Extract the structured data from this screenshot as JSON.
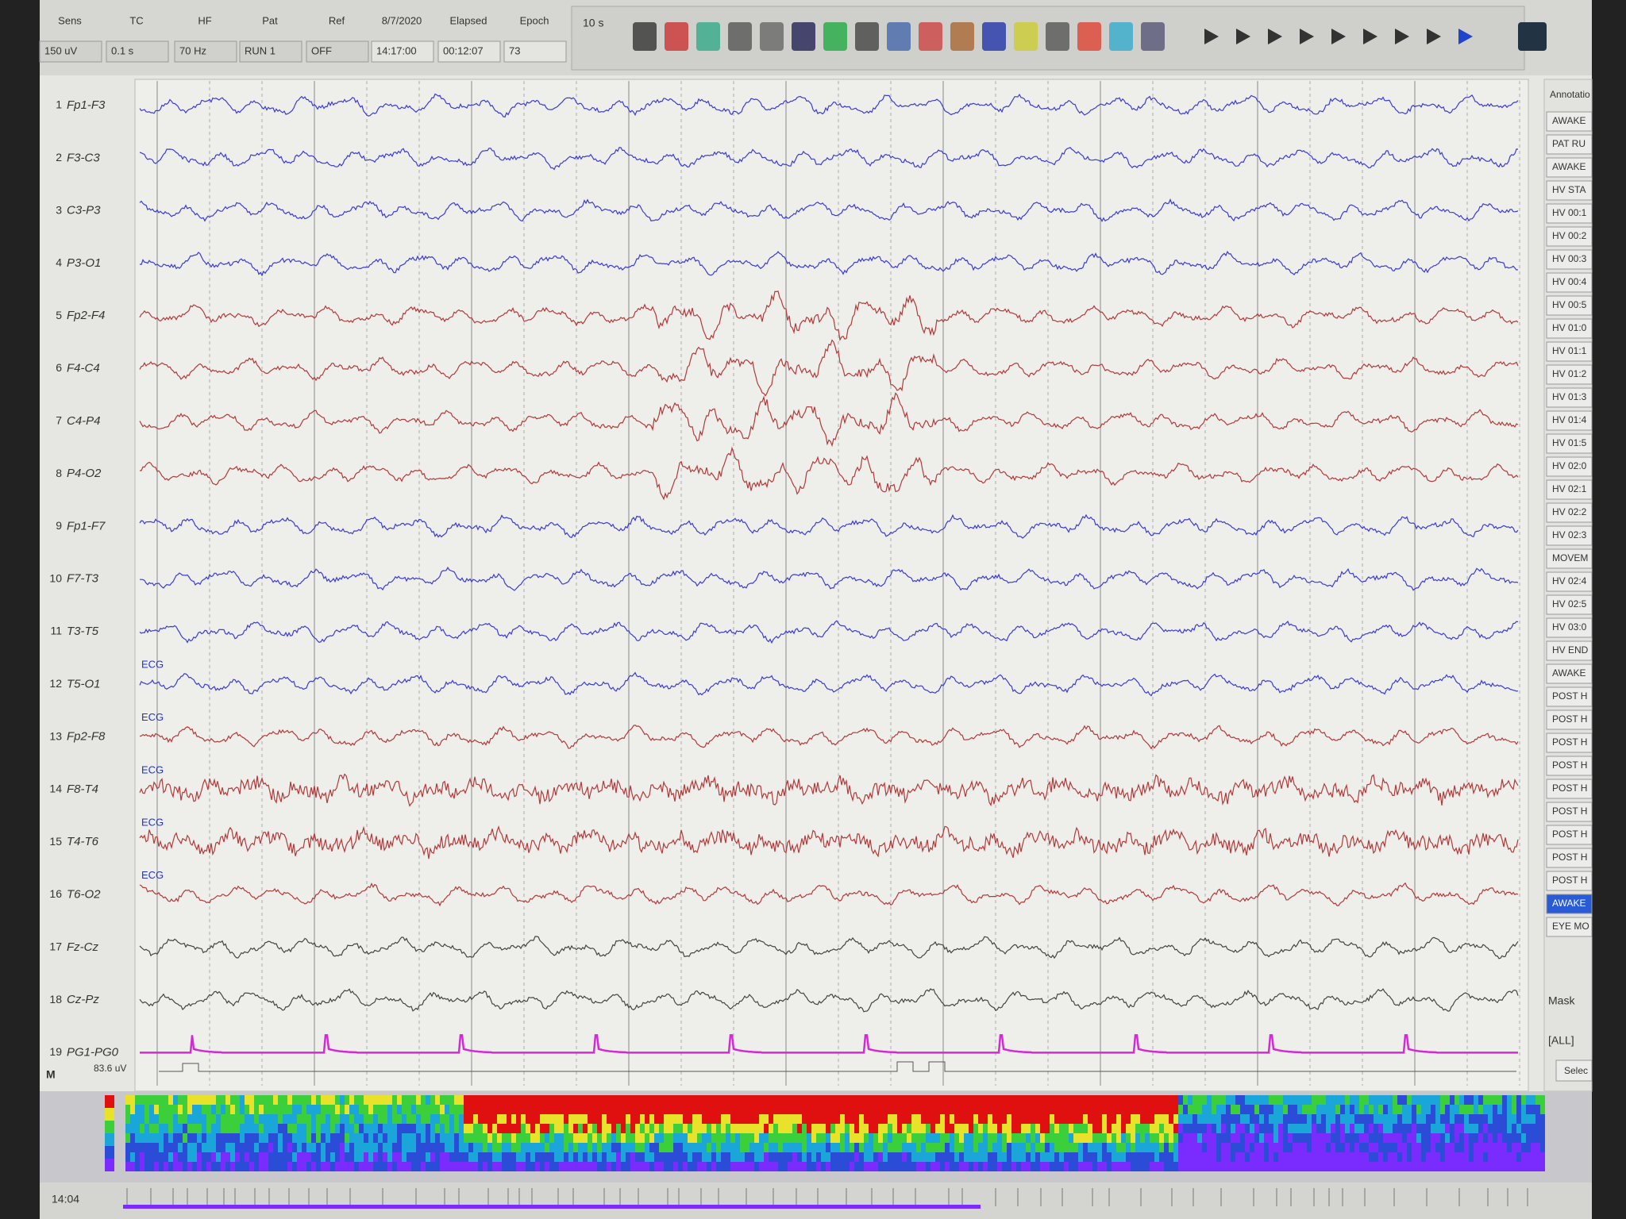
{
  "toolbar": {
    "headers": [
      "Sens",
      "TC",
      "HF",
      "Pat",
      "Ref",
      "8/7/2020",
      "Elapsed",
      "Epoch"
    ],
    "values": [
      "150 uV",
      "0.1 s",
      "70 Hz",
      "RUN 1",
      "OFF",
      "14:17:00",
      "00:12:07",
      "73"
    ],
    "page": "10 s"
  },
  "channels": [
    {
      "number": "1",
      "label": "Fp1-F3",
      "color": "#3b3bd6"
    },
    {
      "number": "2",
      "label": "F3-C3",
      "color": "#3b3bd6"
    },
    {
      "number": "3",
      "label": "C3-P3",
      "color": "#3b3bd6"
    },
    {
      "number": "4",
      "label": "P3-O1",
      "color": "#3b3bd6"
    },
    {
      "number": "5",
      "label": "Fp2-F4",
      "color": "#b23a3a"
    },
    {
      "number": "6",
      "label": "F4-C4",
      "color": "#b23a3a"
    },
    {
      "number": "7",
      "label": "C4-P4",
      "color": "#b23a3a"
    },
    {
      "number": "8",
      "label": "P4-O2",
      "color": "#b23a3a"
    },
    {
      "number": "9",
      "label": "Fp1-F7",
      "color": "#3b3bd6"
    },
    {
      "number": "10",
      "label": "F7-T3",
      "color": "#3b3bd6"
    },
    {
      "number": "11",
      "label": "T3-T5",
      "color": "#3b3bd6"
    },
    {
      "number": "12",
      "label": "T5-O1",
      "color": "#3b3bd6",
      "tag": "ECG"
    },
    {
      "number": "13",
      "label": "Fp2-F8",
      "color": "#b23a3a",
      "tag": "ECG"
    },
    {
      "number": "14",
      "label": "F8-T4",
      "color": "#b23a3a",
      "tag": "ECG"
    },
    {
      "number": "15",
      "label": "T4-T6",
      "color": "#b23a3a",
      "tag": "ECG"
    },
    {
      "number": "16",
      "label": "T6-O2",
      "color": "#b23a3a",
      "tag": "ECG"
    },
    {
      "number": "17",
      "label": "Fz-Cz",
      "color": "#444444"
    },
    {
      "number": "18",
      "label": "Cz-Pz",
      "color": "#444444"
    },
    {
      "number": "19",
      "label": "PG1-PG0",
      "color": "#d42ad4"
    }
  ],
  "marker": {
    "label": "M",
    "scale": "83.6 uV"
  },
  "annotations": {
    "title": "Annotatio",
    "selected": 34,
    "items": [
      "AWAKE",
      "PAT RU",
      "AWAKE",
      "HV STA",
      "HV 00:1",
      "HV 00:2",
      "HV 00:3",
      "HV 00:4",
      "HV 00:5",
      "HV 01:0",
      "HV 01:1",
      "HV 01:2",
      "HV 01:3",
      "HV 01:4",
      "HV 01:5",
      "HV 02:0",
      "HV 02:1",
      "HV 02:2",
      "HV 02:3",
      "MOVEM",
      "HV 02:4",
      "HV 02:5",
      "HV 03:0",
      "HV END",
      "AWAKE",
      "POST H",
      "POST H",
      "POST H",
      "POST H",
      "POST H",
      "POST H",
      "POST H",
      "POST H",
      "POST H",
      "AWAKE",
      "EYE MO"
    ]
  },
  "mask": {
    "label": "Mask",
    "value": "[ALL]",
    "button": "Selec"
  },
  "timeline": {
    "time": "14:04"
  }
}
